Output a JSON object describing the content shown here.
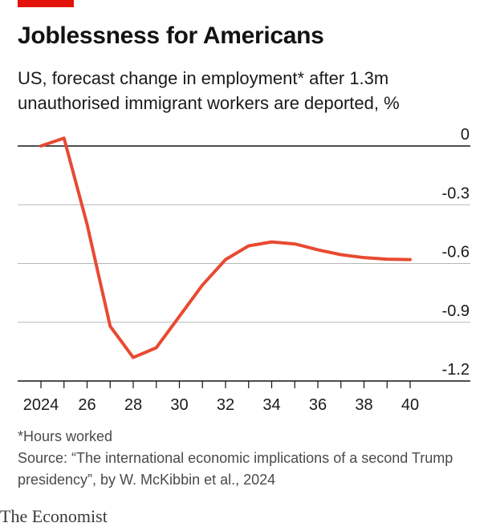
{
  "title": "Joblessness for Americans",
  "subtitle": "US, forecast change in employment* after 1.3m unauthorised immigrant workers are deported, %",
  "footnote": "*Hours worked",
  "source": "Source: “The international economic implications of a second Trump presidency”, by W. McKibbin et al., 2024",
  "brand": "The Economist",
  "colors": {
    "tag": "#e3120b",
    "line": "#e84a32",
    "grid": "#b7b7b7",
    "axis": "#121212"
  },
  "chart_data": {
    "type": "line",
    "title": "Joblessness for Americans",
    "subtitle": "US, forecast change in employment* after 1.3m unauthorised immigrant workers are deported, %",
    "x": [
      2024,
      2025,
      2026,
      2027,
      2028,
      2029,
      2030,
      2031,
      2032,
      2033,
      2034,
      2035,
      2036,
      2037,
      2038,
      2039,
      2040
    ],
    "series": [
      {
        "values": [
          0,
          0.04,
          -0.4,
          -0.92,
          -1.08,
          -1.03,
          -0.87,
          -0.71,
          -0.58,
          -0.51,
          -0.49,
          -0.5,
          -0.53,
          -0.555,
          -0.57,
          -0.578,
          -0.58
        ]
      }
    ],
    "xticks": [
      2024,
      2026,
      2028,
      2030,
      2032,
      2034,
      2036,
      2038,
      2040
    ],
    "xtick_labels": [
      "2024",
      "26",
      "28",
      "30",
      "32",
      "34",
      "36",
      "38",
      "40"
    ],
    "yticks": [
      0,
      -0.3,
      -0.6,
      -0.9,
      -1.2
    ],
    "ytick_labels": [
      "0",
      "-0.3",
      "-0.6",
      "-0.9",
      "-1.2"
    ],
    "xlim": [
      2024,
      2040
    ],
    "ylim": [
      -1.2,
      0
    ],
    "grid": "horizontal",
    "xlabel": "",
    "ylabel": ""
  }
}
